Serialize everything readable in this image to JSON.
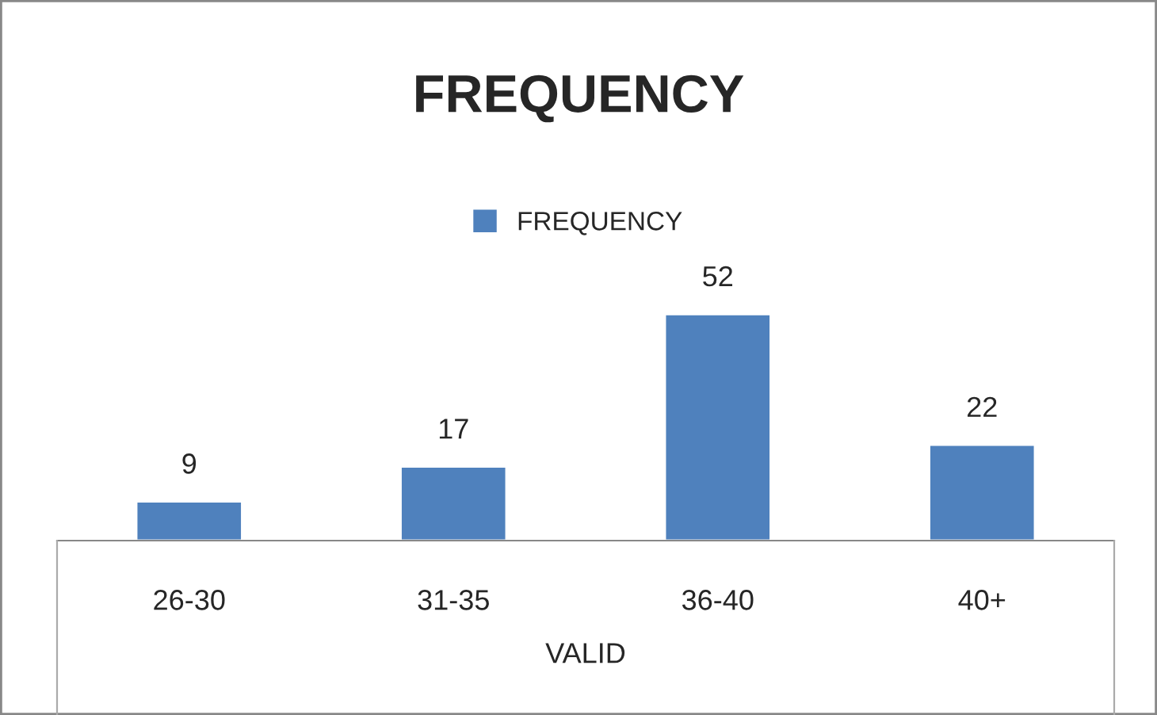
{
  "chart_data": {
    "type": "bar",
    "title": "FREQUENCY",
    "xlabel": "VALID",
    "categories": [
      "26-30",
      "31-35",
      "36-40",
      "40+"
    ],
    "series": [
      {
        "name": "FREQUENCY",
        "color": "#4f81bd",
        "values": [
          9,
          17,
          52,
          22
        ]
      }
    ],
    "data_labels": true,
    "legend": "top",
    "grid": false,
    "tick_labels": "x"
  }
}
